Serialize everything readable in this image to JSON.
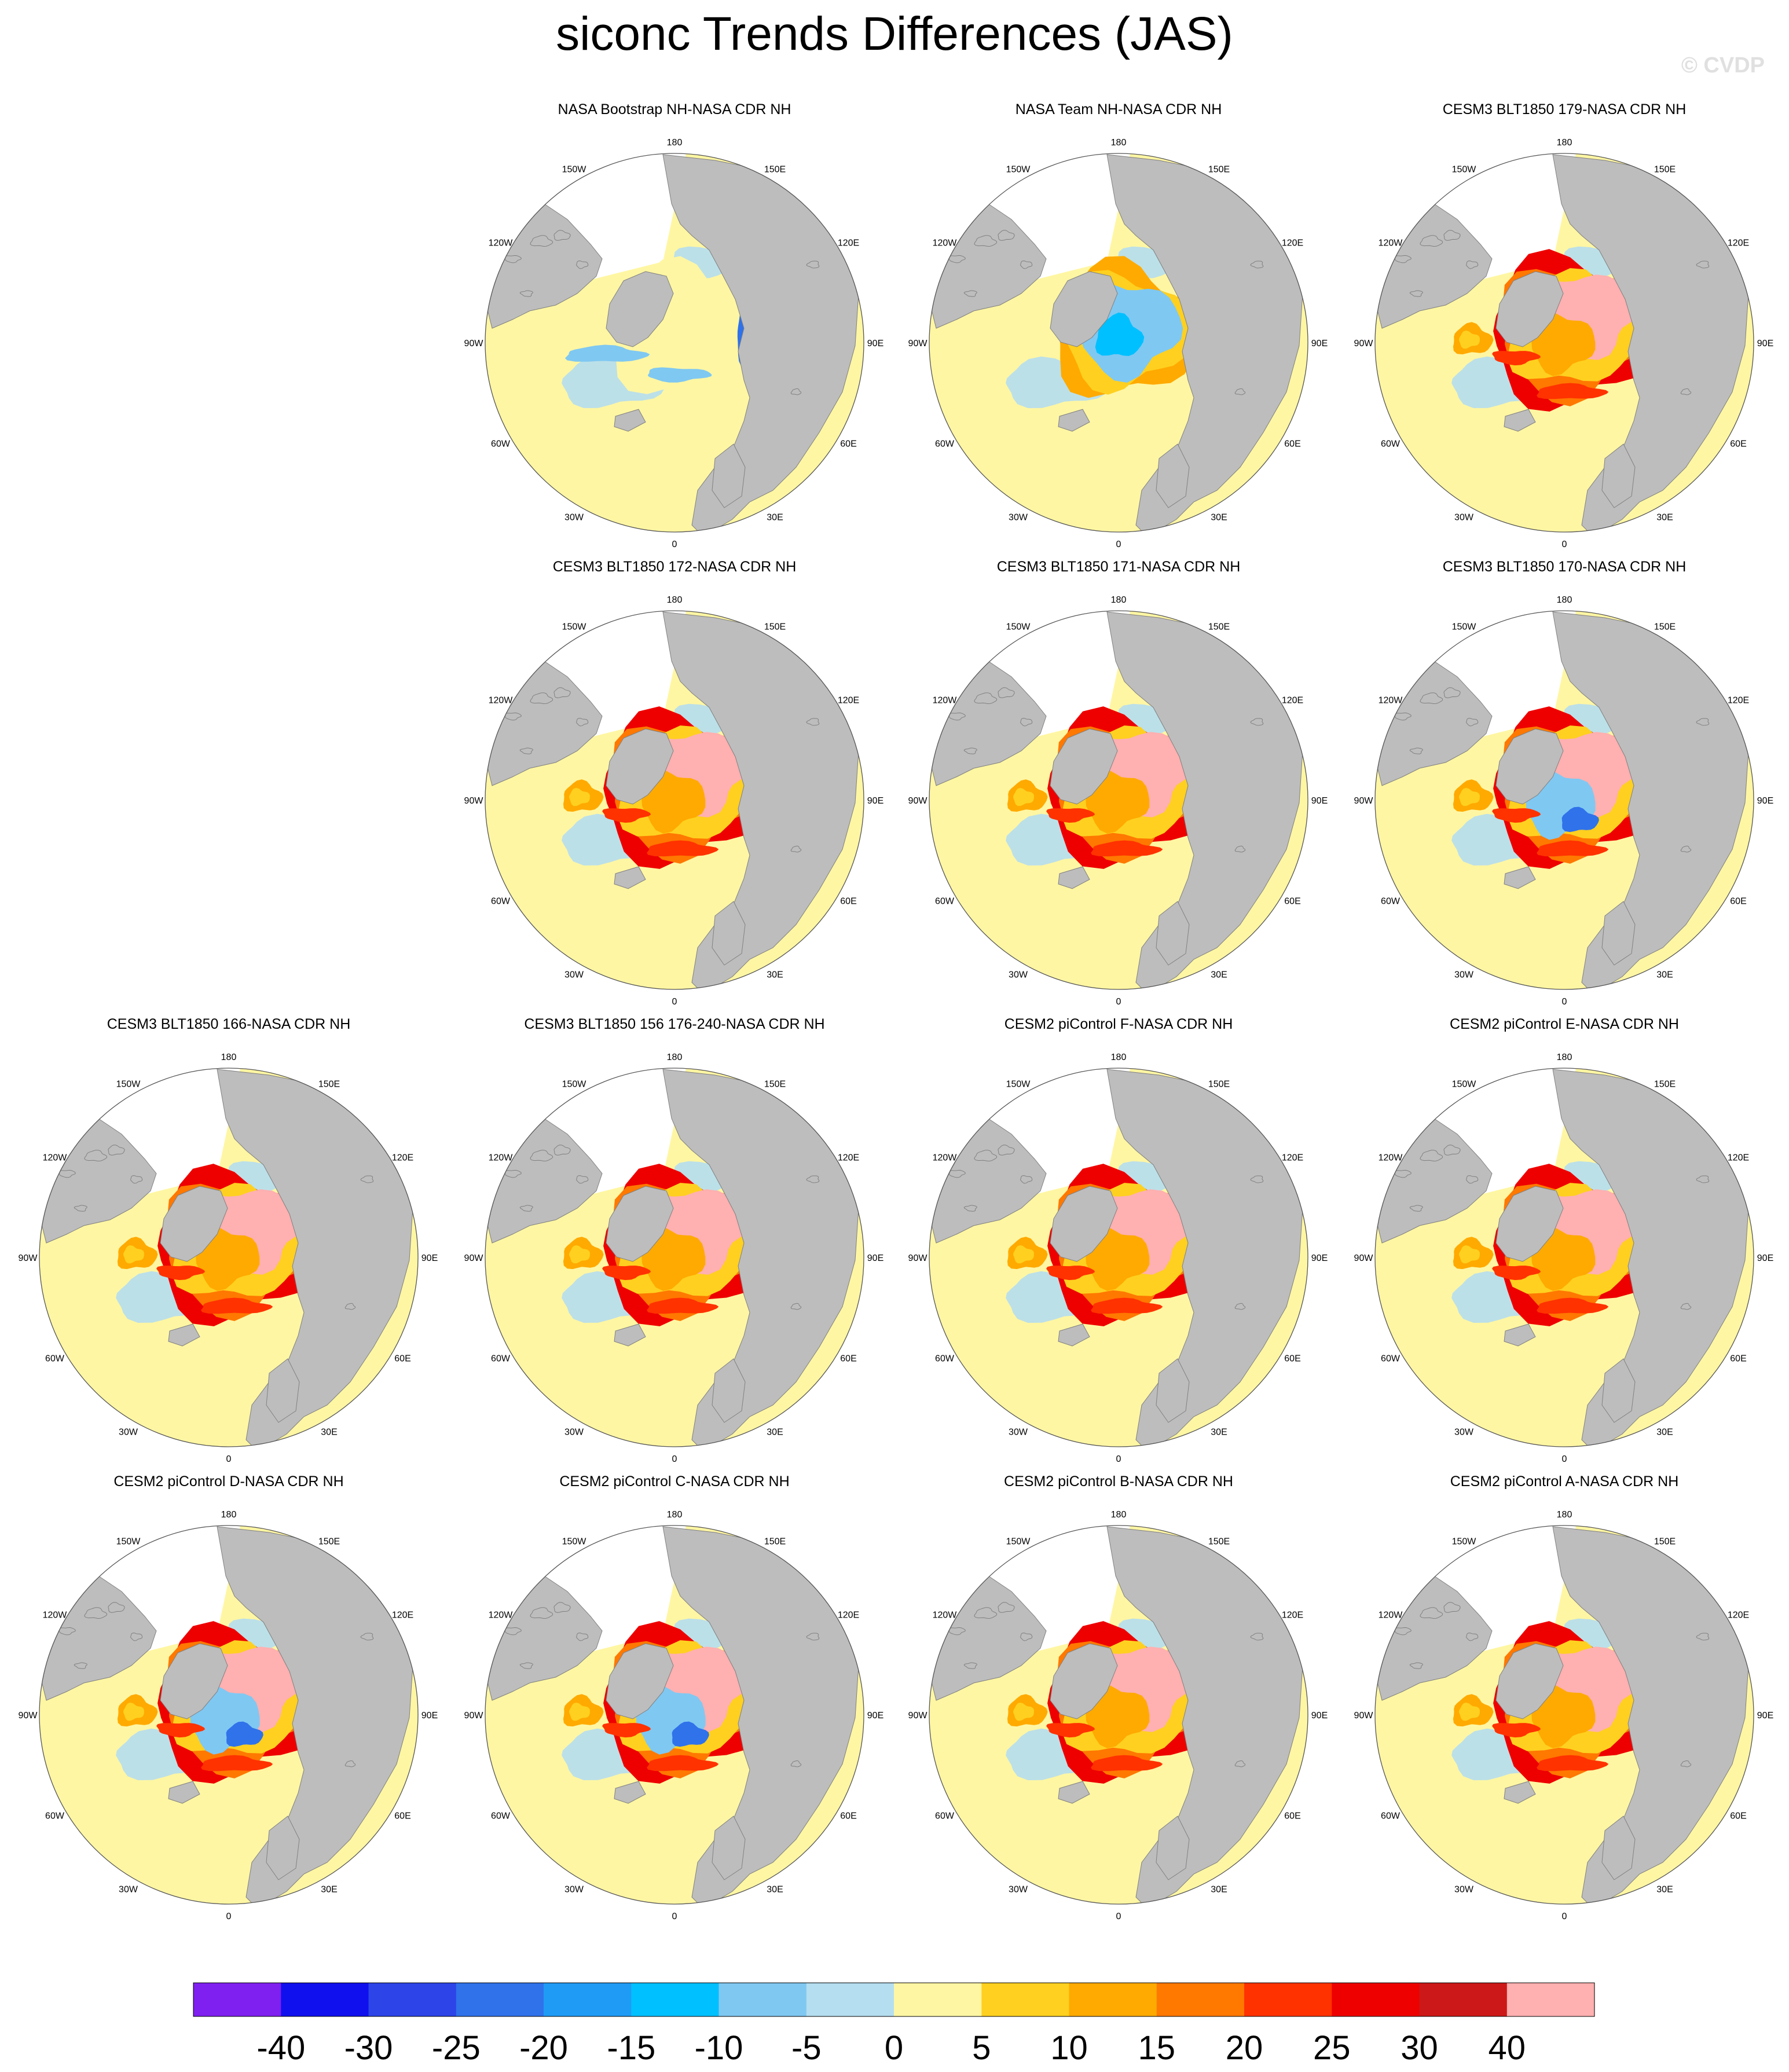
{
  "title": "siconc Trends Differences (JAS)",
  "watermark": "© CVDP",
  "longitude_labels": [
    "180",
    "150E",
    "120E",
    "90E",
    "60E",
    "30E",
    "0",
    "30W",
    "60W",
    "90W",
    "120W",
    "150W"
  ],
  "colors": {
    "land": "#bdbdbd",
    "ocean_zero": "#fff6a3",
    "no_data": "#ffffff",
    "outline": "#555555"
  },
  "colorbar": {
    "colors": [
      "#7f1ff0",
      "#1010ee",
      "#2c44e8",
      "#2f72ea",
      "#1f9bf5",
      "#00c0ff",
      "#7fc8f2",
      "#b5def0",
      "#fff6a3",
      "#ffd020",
      "#ffaa00",
      "#ff7800",
      "#ff3200",
      "#ee0000",
      "#cc1818",
      "#ffb0b0"
    ],
    "labels": [
      "-40",
      "-30",
      "-25",
      "-20",
      "-15",
      "-10",
      "-5",
      "0",
      "5",
      "10",
      "15",
      "20",
      "25",
      "30",
      "40"
    ]
  },
  "panels": [
    {
      "title": "NASA Bootstrap NH-NASA CDR NH",
      "pattern": "bootstrap"
    },
    {
      "title": "NASA Team NH-NASA CDR NH",
      "pattern": "team"
    },
    {
      "title": "CESM3 BLT1850 179-NASA CDR NH",
      "pattern": "model"
    },
    {
      "title": "CESM3 BLT1850 172-NASA CDR NH",
      "pattern": "model"
    },
    {
      "title": "CESM3 BLT1850 171-NASA CDR NH",
      "pattern": "model"
    },
    {
      "title": "CESM3 BLT1850 170-NASA CDR NH",
      "pattern": "model_blue"
    },
    {
      "title": "CESM3 BLT1850 166-NASA CDR NH",
      "pattern": "model"
    },
    {
      "title": "CESM3 BLT1850 156 176-240-NASA CDR NH",
      "pattern": "model"
    },
    {
      "title": "CESM2 piControl F-NASA CDR NH",
      "pattern": "model"
    },
    {
      "title": "CESM2 piControl E-NASA CDR NH",
      "pattern": "model"
    },
    {
      "title": "CESM2 piControl D-NASA CDR NH",
      "pattern": "model_blue"
    },
    {
      "title": "CESM2 piControl C-NASA CDR NH",
      "pattern": "model_blue"
    },
    {
      "title": "CESM2 piControl B-NASA CDR NH",
      "pattern": "model"
    },
    {
      "title": "CESM2 piControl A-NASA CDR NH",
      "pattern": "model"
    }
  ]
}
